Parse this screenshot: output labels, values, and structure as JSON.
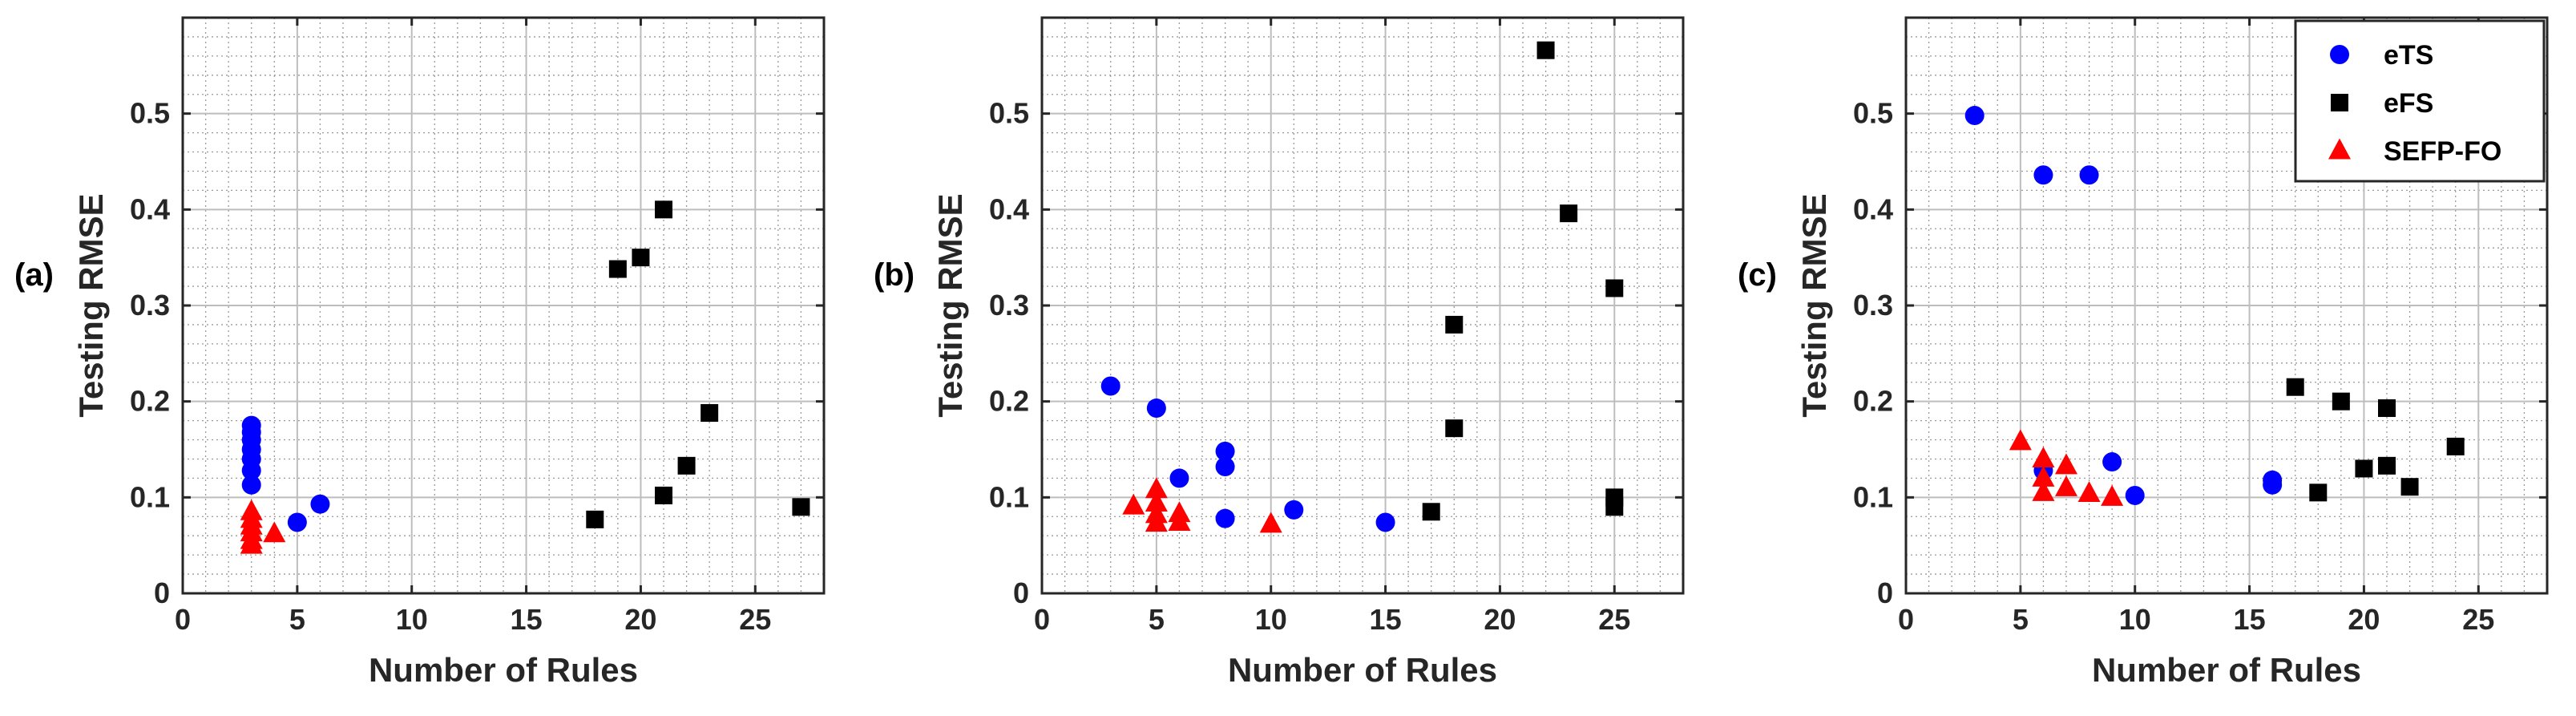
{
  "colors": {
    "eTS": "#0000FF",
    "eFS": "#000000",
    "SEFP-FO": "#FF0000",
    "grid_major": "#BDBDBD",
    "grid_minor": "#9A9A9A",
    "axis": "#262626"
  },
  "chart_data": [
    {
      "type": "scatter",
      "panel_label": "(a)",
      "xlabel": "Number of Rules",
      "ylabel": "Testing RMSE",
      "xlim": [
        0,
        28
      ],
      "ylim": [
        0,
        0.6
      ],
      "xticks": [
        0,
        5,
        10,
        15,
        20,
        25
      ],
      "yticks": [
        0,
        0.1,
        0.2,
        0.3,
        0.4,
        0.5
      ],
      "grid": true,
      "minor_grid": true,
      "series": [
        {
          "name": "eTS",
          "marker": "circle",
          "points": [
            [
              3,
              0.175
            ],
            [
              3,
              0.168
            ],
            [
              3,
              0.16
            ],
            [
              3,
              0.15
            ],
            [
              3,
              0.14
            ],
            [
              3,
              0.128
            ],
            [
              3,
              0.113
            ],
            [
              5,
              0.074
            ],
            [
              6,
              0.093
            ]
          ]
        },
        {
          "name": "eFS",
          "marker": "square",
          "points": [
            [
              18,
              0.077
            ],
            [
              19,
              0.338
            ],
            [
              20,
              0.35
            ],
            [
              21,
              0.4
            ],
            [
              21,
              0.102
            ],
            [
              22,
              0.133
            ],
            [
              23,
              0.188
            ],
            [
              27,
              0.09
            ]
          ]
        },
        {
          "name": "SEFP-FO",
          "marker": "triangle",
          "points": [
            [
              3,
              0.085
            ],
            [
              3,
              0.077
            ],
            [
              3,
              0.07
            ],
            [
              3,
              0.063
            ],
            [
              3,
              0.055
            ],
            [
              3,
              0.05
            ],
            [
              4,
              0.062
            ]
          ]
        }
      ]
    },
    {
      "type": "scatter",
      "panel_label": "(b)",
      "xlabel": "Number of Rules",
      "ylabel": "Testing RMSE",
      "xlim": [
        0,
        28
      ],
      "ylim": [
        0,
        0.6
      ],
      "xticks": [
        0,
        5,
        10,
        15,
        20,
        25
      ],
      "yticks": [
        0,
        0.1,
        0.2,
        0.3,
        0.4,
        0.5
      ],
      "grid": true,
      "minor_grid": true,
      "series": [
        {
          "name": "eTS",
          "marker": "circle",
          "points": [
            [
              3,
              0.216
            ],
            [
              5,
              0.193
            ],
            [
              6,
              0.12
            ],
            [
              8,
              0.148
            ],
            [
              8,
              0.132
            ],
            [
              8,
              0.078
            ],
            [
              11,
              0.087
            ],
            [
              15,
              0.074
            ]
          ]
        },
        {
          "name": "eFS",
          "marker": "square",
          "points": [
            [
              17,
              0.085
            ],
            [
              18,
              0.28
            ],
            [
              18,
              0.172
            ],
            [
              22,
              0.566
            ],
            [
              23,
              0.396
            ],
            [
              25,
              0.318
            ],
            [
              25,
              0.1
            ],
            [
              25,
              0.09
            ]
          ]
        },
        {
          "name": "SEFP-FO",
          "marker": "triangle",
          "points": [
            [
              4,
              0.091
            ],
            [
              5,
              0.108
            ],
            [
              5,
              0.094
            ],
            [
              5,
              0.082
            ],
            [
              5,
              0.073
            ],
            [
              6,
              0.083
            ],
            [
              6,
              0.074
            ],
            [
              10,
              0.072
            ]
          ]
        }
      ]
    },
    {
      "type": "scatter",
      "panel_label": "(c)",
      "xlabel": "Number of Rules",
      "ylabel": "Testing RMSE",
      "xlim": [
        0,
        28
      ],
      "ylim": [
        0,
        0.6
      ],
      "xticks": [
        0,
        5,
        10,
        15,
        20,
        25
      ],
      "yticks": [
        0,
        0.1,
        0.2,
        0.3,
        0.4,
        0.5
      ],
      "grid": true,
      "minor_grid": true,
      "legend": {
        "placement": "top-right",
        "entries": [
          "eTS",
          "eFS",
          "SEFP-FO"
        ]
      },
      "series": [
        {
          "name": "eTS",
          "marker": "circle",
          "points": [
            [
              3,
              0.498
            ],
            [
              6,
              0.436
            ],
            [
              8,
              0.436
            ],
            [
              6,
              0.128
            ],
            [
              9,
              0.137
            ],
            [
              10,
              0.102
            ],
            [
              16,
              0.118
            ],
            [
              16,
              0.113
            ]
          ]
        },
        {
          "name": "eFS",
          "marker": "square",
          "points": [
            [
              17,
              0.215
            ],
            [
              18,
              0.105
            ],
            [
              19,
              0.2
            ],
            [
              20,
              0.13
            ],
            [
              21,
              0.193
            ],
            [
              21,
              0.133
            ],
            [
              22,
              0.111
            ],
            [
              24,
              0.153
            ]
          ]
        },
        {
          "name": "SEFP-FO",
          "marker": "triangle",
          "points": [
            [
              5,
              0.158
            ],
            [
              6,
              0.14
            ],
            [
              6,
              0.12
            ],
            [
              6,
              0.105
            ],
            [
              7,
              0.133
            ],
            [
              7,
              0.11
            ],
            [
              8,
              0.104
            ],
            [
              9,
              0.1
            ]
          ]
        }
      ]
    }
  ]
}
